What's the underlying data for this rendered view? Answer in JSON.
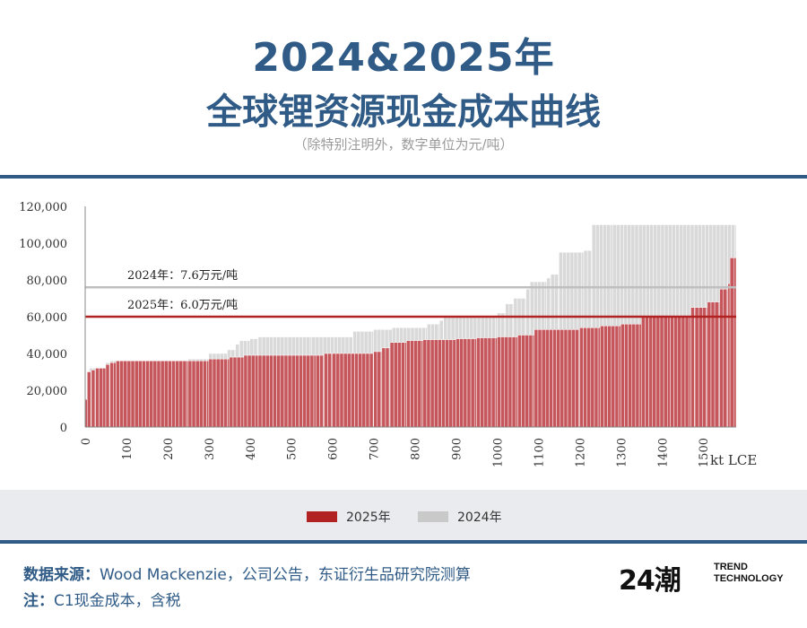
{
  "header": {
    "title_line1": "2024&2025年",
    "title_line2": "全球锂资源现金成本曲线",
    "subtitle": "（除特别注明外，数字单位为元/吨）"
  },
  "colors": {
    "brand_blue": "#2f5b86",
    "series_2025": "#c5565b",
    "series_2025_line": "#b22222",
    "series_2024": "#d9d9d9",
    "series_2024_line": "#bfbfbf"
  },
  "chart_data": {
    "type": "bar",
    "xlabel": "kt LCE",
    "xlim": [
      0,
      1580
    ],
    "ylim": [
      0,
      120000
    ],
    "y_ticks": [
      "0",
      "20,000",
      "40,000",
      "60,000",
      "80,000",
      "100,000",
      "120,000"
    ],
    "x_ticks": [
      "0",
      "100",
      "200",
      "300",
      "400",
      "500",
      "600",
      "700",
      "800",
      "900",
      "1000",
      "1100",
      "1200",
      "1300",
      "1400",
      "1500"
    ],
    "grid": false,
    "legend_position": "bottom",
    "series": [
      {
        "name": "2024年",
        "x": [
          0,
          5,
          10,
          50,
          60,
          250,
          300,
          345,
          365,
          375,
          400,
          420,
          550,
          650,
          700,
          745,
          830,
          860,
          870,
          1000,
          1020,
          1040,
          1070,
          1080,
          1120,
          1130,
          1150,
          1210,
          1230,
          1280
        ],
        "values": [
          15000,
          30000,
          32000,
          35000,
          36000,
          37000,
          40000,
          42000,
          45000,
          47000,
          48000,
          49000,
          49000,
          52000,
          53000,
          54000,
          56000,
          58000,
          60000,
          62000,
          67000,
          70000,
          75000,
          79000,
          81000,
          83000,
          95000,
          96000,
          110000,
          110000
        ]
      },
      {
        "name": "2025年",
        "x": [
          0,
          5,
          15,
          25,
          50,
          60,
          75,
          250,
          300,
          350,
          385,
          420,
          560,
          580,
          600,
          700,
          720,
          740,
          780,
          820,
          900,
          950,
          1000,
          1050,
          1090,
          1200,
          1250,
          1300,
          1350,
          1420,
          1470,
          1480,
          1510,
          1540,
          1560,
          1565,
          1580
        ],
        "values": [
          15000,
          30000,
          31000,
          32000,
          34000,
          35000,
          36000,
          36000,
          37000,
          38000,
          39000,
          39000,
          39000,
          40000,
          40000,
          41000,
          43000,
          46000,
          47000,
          47500,
          48000,
          48500,
          49000,
          50000,
          53000,
          54000,
          55000,
          56000,
          60000,
          60000,
          65000,
          65000,
          68000,
          75000,
          78000,
          92000,
          92000
        ]
      }
    ],
    "annotations": [
      {
        "label": "2024年：7.6万元/吨",
        "y": 76000
      },
      {
        "label": "2025年：6.0万元/吨",
        "y": 60000
      }
    ]
  },
  "legend": {
    "item_2025": "2025年",
    "item_2024": "2024年"
  },
  "footer": {
    "source_label": "数据来源：",
    "source_text": "Wood Mackenzie，公司公告，东证衍生品研究院测算",
    "note_label": "注：",
    "note_text": "C1现金成本，含税",
    "logo_mark": "24潮",
    "logo_line1": "TREND",
    "logo_line2": "TECHNOLOGY"
  }
}
